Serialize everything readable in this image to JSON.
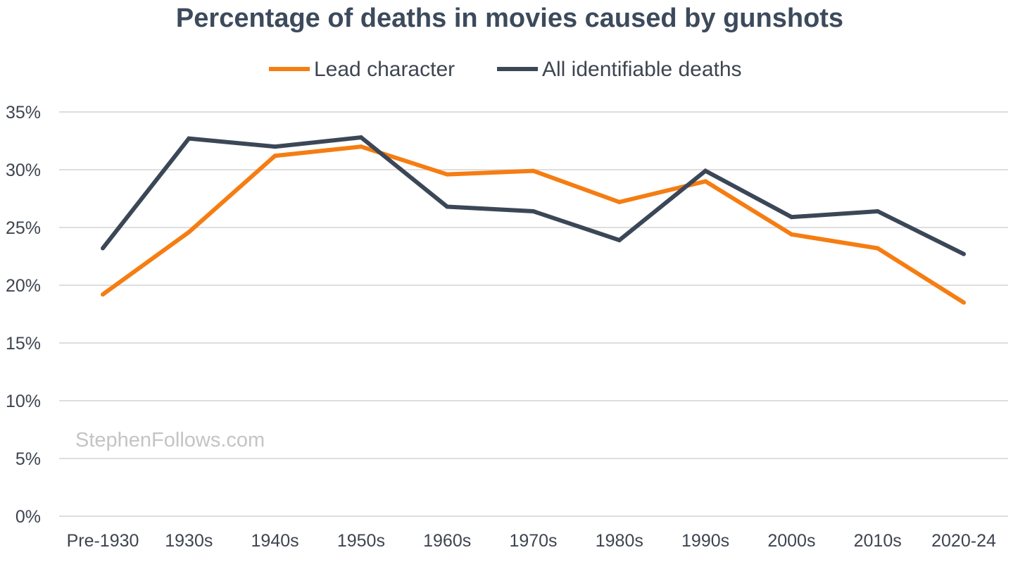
{
  "chart_data": {
    "type": "line",
    "title": "Percentage of deaths in movies caused by gunshots",
    "categories": [
      "Pre-1930",
      "1930s",
      "1940s",
      "1950s",
      "1960s",
      "1970s",
      "1980s",
      "1990s",
      "2000s",
      "2010s",
      "2020-24"
    ],
    "series": [
      {
        "name": "Lead character",
        "color": "#f57d12",
        "values": [
          19.2,
          24.6,
          31.2,
          32.0,
          29.6,
          29.9,
          27.2,
          29.0,
          24.4,
          23.2,
          18.5
        ]
      },
      {
        "name": "All identifiable deaths",
        "color": "#3b4757",
        "values": [
          23.2,
          32.7,
          32.0,
          32.8,
          26.8,
          26.4,
          23.9,
          29.9,
          25.9,
          26.4,
          22.7
        ]
      }
    ],
    "y_ticks": [
      0,
      5,
      10,
      15,
      20,
      25,
      30,
      35
    ],
    "y_tick_labels": [
      "0%",
      "5%",
      "10%",
      "15%",
      "20%",
      "25%",
      "30%",
      "35%"
    ],
    "ylim": [
      0,
      35
    ],
    "ylabel": "",
    "xlabel": "",
    "grid": true,
    "legend_position": "top-center",
    "watermark": "StephenFollows.com"
  }
}
